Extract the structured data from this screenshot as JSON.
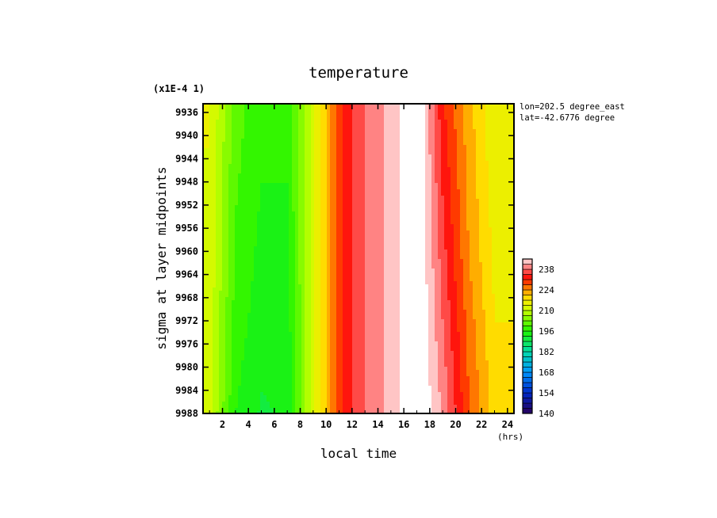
{
  "chart_data": {
    "type": "heatmap",
    "title": "temperature",
    "xlabel": "local time",
    "xunit": "(hrs)",
    "ylabel": "sigma at layer midpoints",
    "yscale_note": "(x1E-4 1)",
    "info_lines": [
      "lon=202.5 degree_east",
      "lat=-42.6776 degree"
    ],
    "xlim": [
      0.5,
      24.5
    ],
    "ylim": [
      9934.5,
      9988
    ],
    "y_inverted": true,
    "x_ticks": [
      2,
      4,
      6,
      8,
      10,
      12,
      14,
      16,
      18,
      20,
      22,
      24
    ],
    "y_ticks": [
      9936,
      9940,
      9944,
      9948,
      9952,
      9956,
      9960,
      9964,
      9968,
      9972,
      9976,
      9980,
      9984,
      9988
    ],
    "x_tick_labels": [
      "2",
      "4",
      "6",
      "8",
      "10",
      "12",
      "14",
      "16",
      "18",
      "20",
      "22",
      "24"
    ],
    "y_tick_labels": [
      "9936",
      "9940",
      "9944",
      "9948",
      "9952",
      "9956",
      "9960",
      "9964",
      "9968",
      "9972",
      "9976",
      "9980",
      "9984",
      "9988"
    ],
    "x": [
      1,
      3,
      5,
      7,
      9,
      11,
      13,
      15,
      17,
      19,
      21,
      23
    ],
    "y": [
      9936,
      9948,
      9960,
      9972,
      9988
    ],
    "z": [
      [
        214,
        201,
        197,
        197,
        212,
        230,
        238,
        243,
        250,
        232,
        222,
        214
      ],
      [
        213,
        200,
        196,
        196,
        212,
        230,
        238,
        243,
        250,
        234,
        223,
        215
      ],
      [
        213,
        199,
        195,
        195,
        212,
        230,
        238,
        243,
        250,
        236,
        224,
        216
      ],
      [
        212,
        198,
        194,
        194,
        212,
        230,
        238,
        243,
        250,
        238,
        226,
        217
      ],
      [
        211,
        196,
        192,
        193,
        212,
        230,
        238,
        243,
        250,
        241,
        228,
        219
      ]
    ],
    "colorbar": {
      "min": 140,
      "max": 245,
      "step": 3.5,
      "tick_values": [
        140,
        154,
        168,
        182,
        196,
        210,
        224,
        238
      ],
      "tick_labels": [
        "140",
        "154",
        "168",
        "182",
        "196",
        "210",
        "224",
        "238"
      ]
    }
  }
}
